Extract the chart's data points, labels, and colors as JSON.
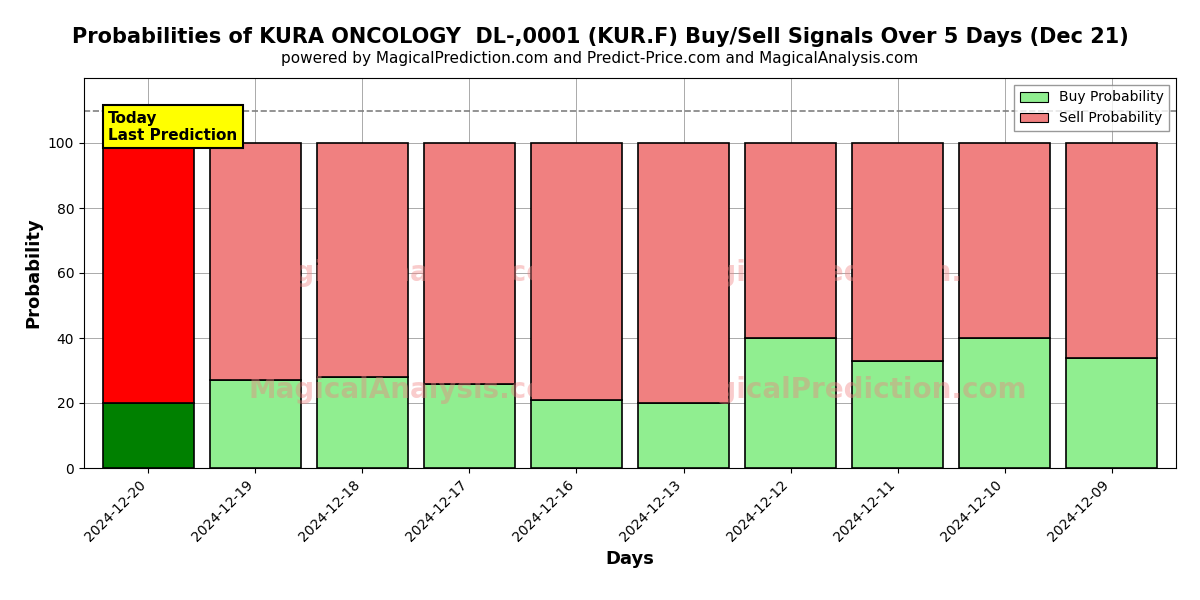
{
  "title": "Probabilities of KURA ONCOLOGY  DL-,0001 (KUR.F) Buy/Sell Signals Over 5 Days (Dec 21)",
  "subtitle": "powered by MagicalPrediction.com and Predict-Price.com and MagicalAnalysis.com",
  "xlabel": "Days",
  "ylabel": "Probability",
  "dates": [
    "2024-12-20",
    "2024-12-19",
    "2024-12-18",
    "2024-12-17",
    "2024-12-16",
    "2024-12-13",
    "2024-12-12",
    "2024-12-11",
    "2024-12-10",
    "2024-12-09"
  ],
  "buy_values": [
    20,
    27,
    28,
    26,
    21,
    20,
    40,
    33,
    40,
    34
  ],
  "sell_values": [
    80,
    73,
    72,
    74,
    79,
    80,
    60,
    67,
    60,
    66
  ],
  "buy_color_today": "#008000",
  "sell_color_today": "#FF0000",
  "buy_color_rest": "#90EE90",
  "sell_color_rest": "#F08080",
  "bar_edge_color": "#000000",
  "bar_edge_width": 1.2,
  "today_annotation": "Today\nLast Prediction",
  "today_annotation_bg": "#FFFF00",
  "dashed_line_y": 110,
  "ylim": [
    0,
    120
  ],
  "yticks": [
    0,
    20,
    40,
    60,
    80,
    100
  ],
  "legend_buy_label": "Buy Probability",
  "legend_sell_label": "Sell Probability",
  "watermark_left": "MagicalAnalysis.com",
  "watermark_right": "MagicalPrediction.com",
  "grid_color": "#aaaaaa",
  "title_fontsize": 15,
  "subtitle_fontsize": 11,
  "axis_label_fontsize": 13,
  "tick_fontsize": 10,
  "bar_width": 0.85
}
